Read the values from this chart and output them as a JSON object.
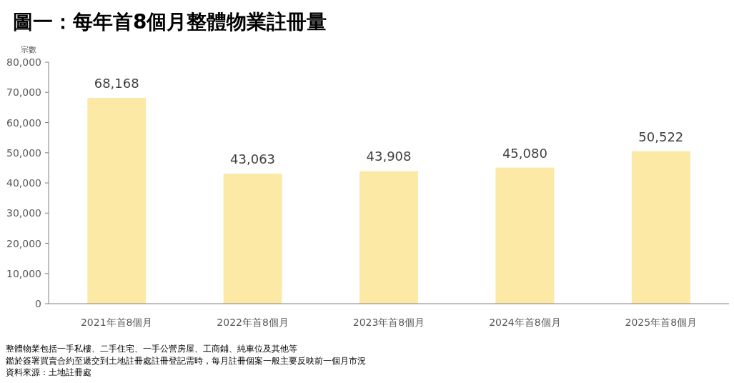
{
  "chart_data": {
    "type": "bar",
    "title": "圖一：每年首8個月整體物業註冊量",
    "ylabel": "宗數",
    "categories": [
      "2021年首8個月",
      "2022年首8個月",
      "2023年首8個月",
      "2024年首8個月",
      "2025年首8個月"
    ],
    "values": [
      68168,
      43063,
      43908,
      45080,
      50522
    ],
    "value_labels": [
      "68,168",
      "43,063",
      "43,908",
      "45,080",
      "50,522"
    ],
    "color": "#fde9a6",
    "ylim": [
      0,
      80000
    ],
    "yticks": [
      {
        "value": 0,
        "label": "0"
      },
      {
        "value": 10000,
        "label": "10,000"
      },
      {
        "value": 20000,
        "label": "20,000"
      },
      {
        "value": 30000,
        "label": "30,000"
      },
      {
        "value": 40000,
        "label": "40,000"
      },
      {
        "value": 50000,
        "label": "50,000"
      },
      {
        "value": 60000,
        "label": "60,000"
      },
      {
        "value": 70000,
        "label": "70,000"
      },
      {
        "value": 80000,
        "label": "80,000"
      }
    ],
    "annotations": [
      "整體物業包括一手私樓、二手住宅、一手公營房屋、工商鋪、純車位及其他等",
      "鑑於簽署買賣合約至遞交到土地註冊處註冊登記需時，每月註冊個案一般主要反映前一個月市況",
      "資料來源：土地註冊處"
    ]
  }
}
